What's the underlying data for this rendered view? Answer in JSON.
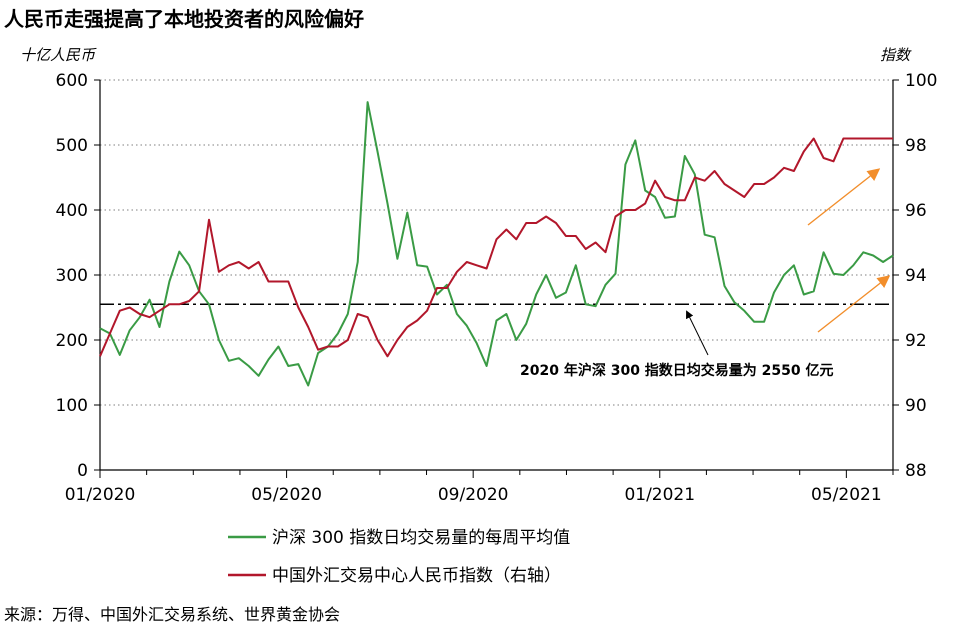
{
  "chart_data": {
    "type": "line",
    "title": "人民币走强提高了本地投资者的风险偏好",
    "left_unit": "十亿人民币",
    "right_unit": "指数",
    "x_tick_labels": [
      "01/2020",
      "05/2020",
      "09/2020",
      "01/2021",
      "05/2021"
    ],
    "x_range": [
      0,
      1.0
    ],
    "left_axis": {
      "min": 0,
      "max": 600,
      "ticks": [
        "0",
        "100",
        "200",
        "300",
        "400",
        "500",
        "600"
      ]
    },
    "right_axis": {
      "min": 88,
      "max": 100,
      "ticks": [
        "88",
        "90",
        "92",
        "94",
        "96",
        "98",
        "100"
      ]
    },
    "grid": "horizontal dotted",
    "reference_line": {
      "value": 255,
      "axis": "left",
      "style": "dash-dot"
    },
    "annotation": "2020 年沪深 300 指数日均交易量为 2550 亿元",
    "series": [
      {
        "name": "沪深 300 指数日均交易量的每周平均值",
        "axis": "left",
        "color": "#3a9b45",
        "x": [
          0.0,
          0.0125,
          0.025,
          0.0375,
          0.05,
          0.0625,
          0.075,
          0.0875,
          0.1,
          0.1125,
          0.125,
          0.1375,
          0.15,
          0.1625,
          0.175,
          0.1875,
          0.2,
          0.2125,
          0.225,
          0.2375,
          0.25,
          0.2625,
          0.275,
          0.2875,
          0.3,
          0.3125,
          0.325,
          0.3375,
          0.35,
          0.3625,
          0.375,
          0.3875,
          0.4,
          0.4125,
          0.425,
          0.4375,
          0.45,
          0.4625,
          0.475,
          0.4875,
          0.5,
          0.5125,
          0.525,
          0.5375,
          0.55,
          0.5625,
          0.575,
          0.5875,
          0.6,
          0.6125,
          0.625,
          0.6375,
          0.65,
          0.6625,
          0.675,
          0.6875,
          0.7,
          0.7125,
          0.725,
          0.7375,
          0.75,
          0.7625,
          0.775,
          0.7875,
          0.8,
          0.8125,
          0.825,
          0.8375,
          0.85,
          0.8625,
          0.875,
          0.8875,
          0.9,
          0.9125,
          0.925,
          0.9375,
          0.95,
          0.9625,
          0.975,
          0.9875,
          1.0
        ],
        "values": [
          218,
          210,
          177,
          215,
          235,
          262,
          220,
          290,
          336,
          315,
          275,
          255,
          200,
          168,
          172,
          160,
          145,
          170,
          190,
          160,
          163,
          130,
          180,
          190,
          210,
          240,
          320,
          566,
          490,
          410,
          325,
          396,
          315,
          313,
          270,
          285,
          240,
          222,
          195,
          160,
          230,
          240,
          200,
          225,
          270,
          300,
          265,
          273,
          315,
          255,
          252,
          285,
          302,
          470,
          507,
          430,
          420,
          388,
          390,
          483,
          455,
          362,
          358,
          283,
          258,
          245,
          228,
          228,
          273,
          300,
          315,
          270,
          275,
          335,
          302,
          300,
          315,
          335,
          330,
          320,
          330
        ]
      },
      {
        "name": "中国外汇交易中心人民币指数（右轴）",
        "axis": "right",
        "color": "#b2172b",
        "x": [
          0.0,
          0.0125,
          0.025,
          0.0375,
          0.05,
          0.0625,
          0.075,
          0.0875,
          0.1,
          0.1125,
          0.125,
          0.1375,
          0.15,
          0.1625,
          0.175,
          0.1875,
          0.2,
          0.2125,
          0.225,
          0.2375,
          0.25,
          0.2625,
          0.275,
          0.2875,
          0.3,
          0.3125,
          0.325,
          0.3375,
          0.35,
          0.3625,
          0.375,
          0.3875,
          0.4,
          0.4125,
          0.425,
          0.4375,
          0.45,
          0.4625,
          0.475,
          0.4875,
          0.5,
          0.5125,
          0.525,
          0.5375,
          0.55,
          0.5625,
          0.575,
          0.5875,
          0.6,
          0.6125,
          0.625,
          0.6375,
          0.65,
          0.6625,
          0.675,
          0.6875,
          0.7,
          0.7125,
          0.725,
          0.7375,
          0.75,
          0.7625,
          0.775,
          0.7875,
          0.8,
          0.8125,
          0.825,
          0.8375,
          0.85,
          0.8625,
          0.875,
          0.8875,
          0.9,
          0.9125,
          0.925,
          0.9375,
          0.95,
          0.9625,
          0.975,
          0.9875,
          1.0
        ],
        "values": [
          91.5,
          92.2,
          92.9,
          93.0,
          92.8,
          92.7,
          92.9,
          93.1,
          93.1,
          93.2,
          93.5,
          95.7,
          94.1,
          94.3,
          94.4,
          94.2,
          94.4,
          93.8,
          93.8,
          93.8,
          93.0,
          92.4,
          91.7,
          91.8,
          91.8,
          92.0,
          92.8,
          92.7,
          92.0,
          91.5,
          92.0,
          92.4,
          92.6,
          92.9,
          93.6,
          93.6,
          94.1,
          94.4,
          94.3,
          94.2,
          95.1,
          95.4,
          95.1,
          95.6,
          95.6,
          95.8,
          95.6,
          95.2,
          95.2,
          94.8,
          95.0,
          94.7,
          95.8,
          96.0,
          96.0,
          96.2,
          96.9,
          96.4,
          96.3,
          96.3,
          97.0,
          96.9,
          97.2,
          96.8,
          96.6,
          96.4,
          96.8,
          96.8,
          97.0,
          97.3,
          97.2,
          97.8,
          98.2,
          97.6,
          97.5,
          98.2,
          98.2,
          98.2,
          98.2,
          98.2,
          98.2
        ]
      }
    ],
    "legend": [
      {
        "label": "沪深 300 指数日均交易量的每周平均值",
        "color": "#3a9b45"
      },
      {
        "label": "中国外汇交易中心人民币指数（右轴）",
        "color": "#b2172b"
      }
    ],
    "arrow_color": "#f28e2b",
    "source": "来源：万得、中国外汇交易系统、世界黄金协会"
  }
}
